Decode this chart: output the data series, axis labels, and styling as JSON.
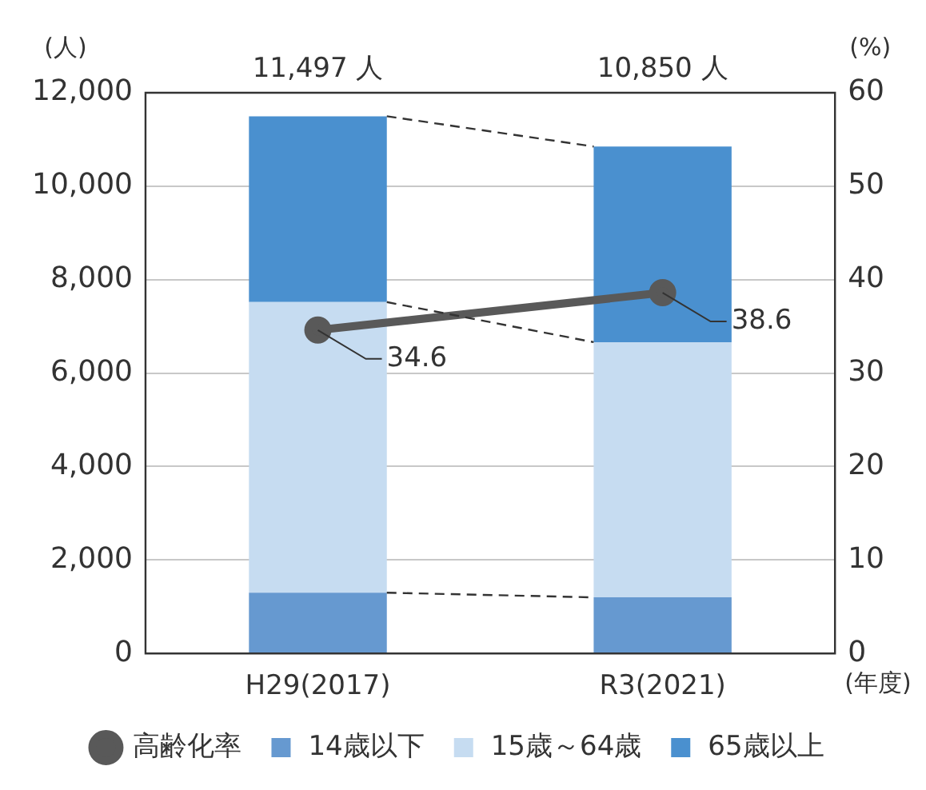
{
  "chart_data": {
    "type": "bar",
    "stacked": true,
    "categories": [
      "H29(2017)",
      "R3(2021)"
    ],
    "ylabel": "(人)",
    "y2label": "(%)",
    "xlabel": "(年度)",
    "ylim": [
      0,
      12000
    ],
    "yticks": [
      {
        "value": 0,
        "label": "0"
      },
      {
        "value": 2000,
        "label": "2,000"
      },
      {
        "value": 4000,
        "label": "4,000"
      },
      {
        "value": 6000,
        "label": "6,000"
      },
      {
        "value": 8000,
        "label": "8,000"
      },
      {
        "value": 10000,
        "label": "10,000"
      },
      {
        "value": 12000,
        "label": "12,000"
      }
    ],
    "y2lim": [
      0,
      60
    ],
    "y2ticks": [
      0,
      10,
      20,
      30,
      40,
      50,
      60
    ],
    "grid": "y",
    "legend": "bottom",
    "totals": [
      "11,497 人",
      "10,850 人"
    ],
    "series": [
      {
        "name": "14歳以下",
        "color": "#6699d0",
        "values": [
          1300,
          1200
        ]
      },
      {
        "name": "15歳～64歳",
        "color": "#c6dcf1",
        "values": [
          6220,
          5462
        ]
      },
      {
        "name": "65歳以上",
        "color": "#4a90cf",
        "values": [
          3977,
          4188
        ]
      },
      {
        "name": "高齢化率",
        "type": "line",
        "axis": "y2",
        "color": "#595959",
        "marker": "circle",
        "values": [
          34.6,
          38.6
        ],
        "value_labels": [
          "34.6",
          "38.6"
        ]
      }
    ]
  }
}
